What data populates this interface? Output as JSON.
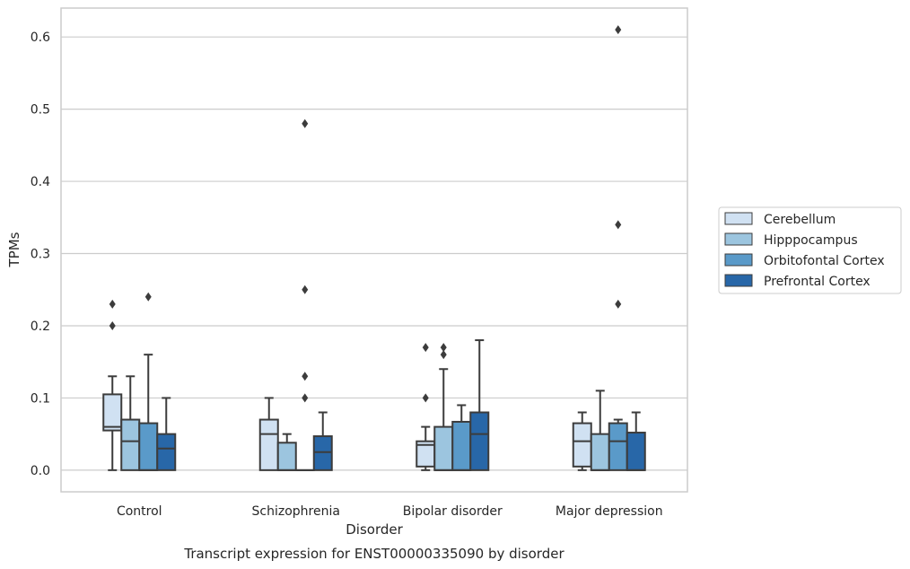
{
  "chart_data": {
    "type": "box",
    "title": "",
    "caption": "Transcript expression for ENST00000335090 by disorder",
    "xlabel": "Disorder",
    "ylabel": "TPMs",
    "ylim": [
      -0.03,
      0.64
    ],
    "yticks": [
      "0.0",
      "0.1",
      "0.2",
      "0.3",
      "0.4",
      "0.5",
      "0.6"
    ],
    "grid": "horizontal",
    "legend_position": "right",
    "categories": [
      "Control",
      "Schizophrenia",
      "Bipolar disorder",
      "Major depression"
    ],
    "series": [
      {
        "name": "Cerebellum",
        "color": "#d0e1f2",
        "boxes": [
          {
            "q1": 0.055,
            "median": 0.06,
            "q3": 0.105,
            "whisker_low": 0.0,
            "whisker_high": 0.13,
            "outliers": [
              0.2,
              0.23
            ]
          },
          {
            "q1": 0.0,
            "median": 0.05,
            "q3": 0.07,
            "whisker_low": 0.0,
            "whisker_high": 0.1,
            "outliers": []
          },
          {
            "q1": 0.005,
            "median": 0.035,
            "q3": 0.04,
            "whisker_low": 0.0,
            "whisker_high": 0.06,
            "outliers": [
              0.1,
              0.17
            ]
          },
          {
            "q1": 0.005,
            "median": 0.04,
            "q3": 0.065,
            "whisker_low": 0.0,
            "whisker_high": 0.08,
            "outliers": []
          }
        ]
      },
      {
        "name": "Hipppocampus",
        "color": "#9cc5df",
        "boxes": [
          {
            "q1": 0.0,
            "median": 0.04,
            "q3": 0.07,
            "whisker_low": 0.0,
            "whisker_high": 0.13,
            "outliers": []
          },
          {
            "q1": 0.0,
            "median": 0.0,
            "q3": 0.038,
            "whisker_low": 0.0,
            "whisker_high": 0.05,
            "outliers": []
          },
          {
            "q1": 0.0,
            "median": 0.0,
            "q3": 0.06,
            "whisker_low": 0.0,
            "whisker_high": 0.14,
            "outliers": [
              0.16,
              0.17
            ]
          },
          {
            "q1": 0.0,
            "median": 0.0,
            "q3": 0.05,
            "whisker_low": 0.0,
            "whisker_high": 0.11,
            "outliers": []
          }
        ]
      },
      {
        "name": "Orbitofontal Cortex",
        "color": "#5a9ac9",
        "boxes": [
          {
            "q1": 0.0,
            "median": 0.0,
            "q3": 0.065,
            "whisker_low": 0.0,
            "whisker_high": 0.16,
            "outliers": [
              0.24
            ]
          },
          {
            "q1": 0.0,
            "median": 0.0,
            "q3": 0.0,
            "whisker_low": 0.0,
            "whisker_high": 0.0,
            "outliers": [
              0.1,
              0.13,
              0.25,
              0.48
            ]
          },
          {
            "q1": 0.0,
            "median": 0.0,
            "q3": 0.067,
            "whisker_low": 0.0,
            "whisker_high": 0.09,
            "outliers": []
          },
          {
            "q1": 0.0,
            "median": 0.04,
            "q3": 0.065,
            "whisker_low": 0.0,
            "whisker_high": 0.07,
            "outliers": [
              0.23,
              0.34,
              0.61
            ]
          }
        ]
      },
      {
        "name": "Prefrontal Cortex",
        "color": "#2867a8",
        "boxes": [
          {
            "q1": 0.0,
            "median": 0.03,
            "q3": 0.05,
            "whisker_low": 0.0,
            "whisker_high": 0.1,
            "outliers": []
          },
          {
            "q1": 0.0,
            "median": 0.025,
            "q3": 0.047,
            "whisker_low": 0.0,
            "whisker_high": 0.08,
            "outliers": []
          },
          {
            "q1": 0.0,
            "median": 0.05,
            "q3": 0.08,
            "whisker_low": 0.0,
            "whisker_high": 0.18,
            "outliers": []
          },
          {
            "q1": 0.0,
            "median": 0.0,
            "q3": 0.052,
            "whisker_low": 0.0,
            "whisker_high": 0.08,
            "outliers": []
          }
        ]
      }
    ]
  }
}
